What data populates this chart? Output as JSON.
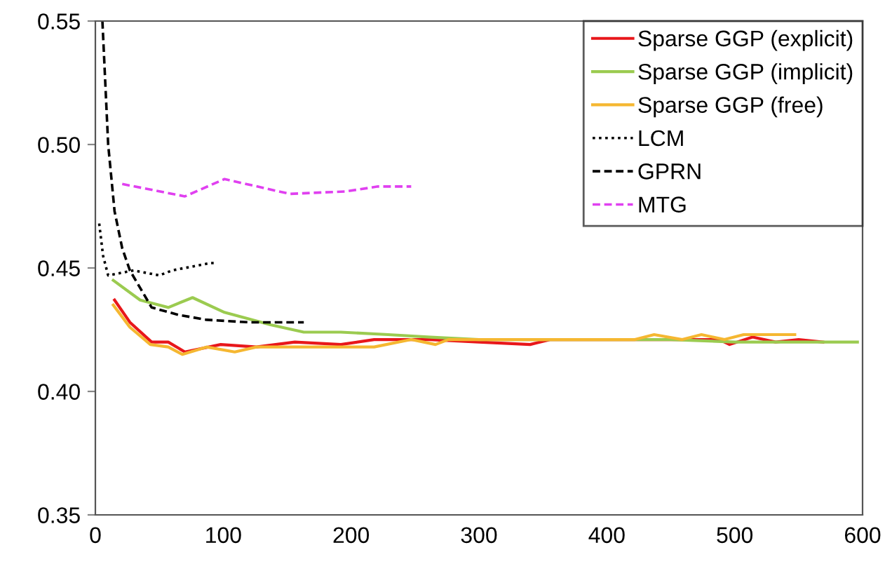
{
  "chart_data": {
    "type": "line",
    "xlim": [
      0,
      600
    ],
    "ylim": [
      0.35,
      0.55
    ],
    "xticks": [
      0,
      100,
      200,
      300,
      400,
      500,
      600
    ],
    "yticks": [
      0.35,
      {
        "value": 0.4,
        "label": "0.40"
      },
      0.45,
      {
        "value": 0.5,
        "label": "0.50"
      },
      0.55
    ],
    "grid": false,
    "legend": "top right",
    "marker": "none",
    "series": [
      {
        "name": "Sparse GGP (explicit)",
        "color": "#e8171b",
        "line_style": "solid",
        "x": [
          15,
          27,
          44,
          57,
          70,
          98,
          126,
          156,
          192,
          218,
          262,
          300,
          340,
          356,
          488,
          496,
          514,
          532,
          550,
          569
        ],
        "values": [
          0.437,
          0.428,
          0.42,
          0.42,
          0.416,
          0.419,
          0.418,
          0.42,
          0.419,
          0.421,
          0.421,
          0.42,
          0.419,
          0.421,
          0.421,
          0.419,
          0.422,
          0.42,
          0.421,
          0.42
        ]
      },
      {
        "name": "Sparse GGP (implicit)",
        "color": "#9bcb50",
        "line_style": "solid",
        "x": [
          14,
          35,
          57,
          76,
          101,
          137,
          163,
          192,
          229,
          262,
          300,
          350,
          400,
          450,
          500,
          550,
          596
        ],
        "values": [
          0.445,
          0.437,
          0.434,
          0.438,
          0.432,
          0.427,
          0.424,
          0.424,
          0.423,
          0.422,
          0.421,
          0.421,
          0.421,
          0.421,
          0.42,
          0.42,
          0.42
        ]
      },
      {
        "name": "Sparse GGP (free)",
        "color": "#f5b731",
        "line_style": "solid",
        "x": [
          14,
          27,
          43,
          57,
          68,
          87,
          109,
          126,
          156,
          189,
          218,
          247,
          266,
          276,
          320,
          380,
          422,
          437,
          459,
          474,
          492,
          507,
          547
        ],
        "values": [
          0.435,
          0.426,
          0.419,
          0.418,
          0.415,
          0.418,
          0.416,
          0.418,
          0.418,
          0.418,
          0.418,
          0.421,
          0.419,
          0.421,
          0.421,
          0.421,
          0.421,
          0.423,
          0.421,
          0.423,
          0.421,
          0.423,
          0.423
        ]
      },
      {
        "name": "LCM",
        "color": "#000000",
        "line_style": "dotted",
        "x": [
          3,
          6,
          10,
          20,
          30,
          40,
          50,
          60,
          70,
          80,
          90,
          95
        ],
        "values": [
          0.468,
          0.455,
          0.447,
          0.448,
          0.449,
          0.448,
          0.447,
          0.449,
          0.45,
          0.451,
          0.452,
          0.452
        ]
      },
      {
        "name": "GPRN",
        "color": "#000000",
        "line_style": "dashed",
        "x": [
          5.5,
          10,
          15,
          21,
          27,
          44,
          65,
          87,
          120,
          163
        ],
        "values": [
          0.55,
          0.5,
          0.473,
          0.458,
          0.449,
          0.434,
          0.431,
          0.429,
          0.428,
          0.428
        ]
      },
      {
        "name": "MTG",
        "color": "#e040f0",
        "line_style": "dashed",
        "x": [
          21,
          70,
          101,
          152,
          196,
          221,
          247
        ],
        "values": [
          0.484,
          0.479,
          0.486,
          0.48,
          0.481,
          0.483,
          0.483
        ]
      }
    ]
  }
}
